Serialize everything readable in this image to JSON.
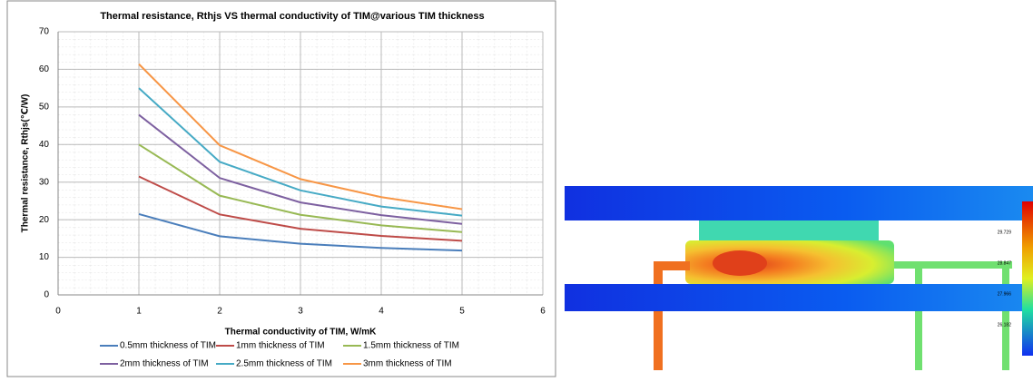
{
  "chart_data": {
    "type": "line",
    "title": "Thermal resistance, Rthjs VS thermal conductivity of TIM@various TIM thickness",
    "x_label": "Thermal conductivity of TIM, W/mK",
    "y_label": "Thermal resistance, Rthjs(℃/W)",
    "x": [
      1,
      2,
      3,
      4,
      5
    ],
    "xlim": [
      0,
      6
    ],
    "xticks": [
      0,
      1,
      2,
      3,
      4,
      5,
      6
    ],
    "ylim": [
      0,
      70
    ],
    "yticks": [
      0,
      10,
      20,
      30,
      40,
      50,
      60,
      70
    ],
    "grid": true,
    "legend": "bottom",
    "series": [
      {
        "name": "0.5mm thickness of TIM",
        "color": "#4a7ebb",
        "values": [
          21.5,
          15.6,
          13.6,
          12.5,
          11.8
        ]
      },
      {
        "name": "1mm thickness of TIM",
        "color": "#be4b48",
        "values": [
          31.5,
          21.4,
          17.6,
          15.7,
          14.4
        ]
      },
      {
        "name": "1.5mm thickness of TIM",
        "color": "#98b954",
        "values": [
          40,
          26.4,
          21.3,
          18.5,
          16.7
        ]
      },
      {
        "name": "2mm thickness of TIM",
        "color": "#7d60a0",
        "values": [
          47.9,
          31.1,
          24.6,
          21.2,
          18.9
        ]
      },
      {
        "name": "2.5mm thickness of TIM",
        "color": "#46aac5",
        "values": [
          55,
          35.4,
          27.8,
          23.5,
          21.1
        ]
      },
      {
        "name": "3mm thickness of TIM",
        "color": "#f79646",
        "values": [
          61.4,
          39.8,
          30.8,
          26,
          22.8
        ]
      }
    ]
  },
  "thermal_image": {
    "legend_labels": [
      "29.729",
      "28.847",
      "27.966",
      "26.182"
    ]
  }
}
